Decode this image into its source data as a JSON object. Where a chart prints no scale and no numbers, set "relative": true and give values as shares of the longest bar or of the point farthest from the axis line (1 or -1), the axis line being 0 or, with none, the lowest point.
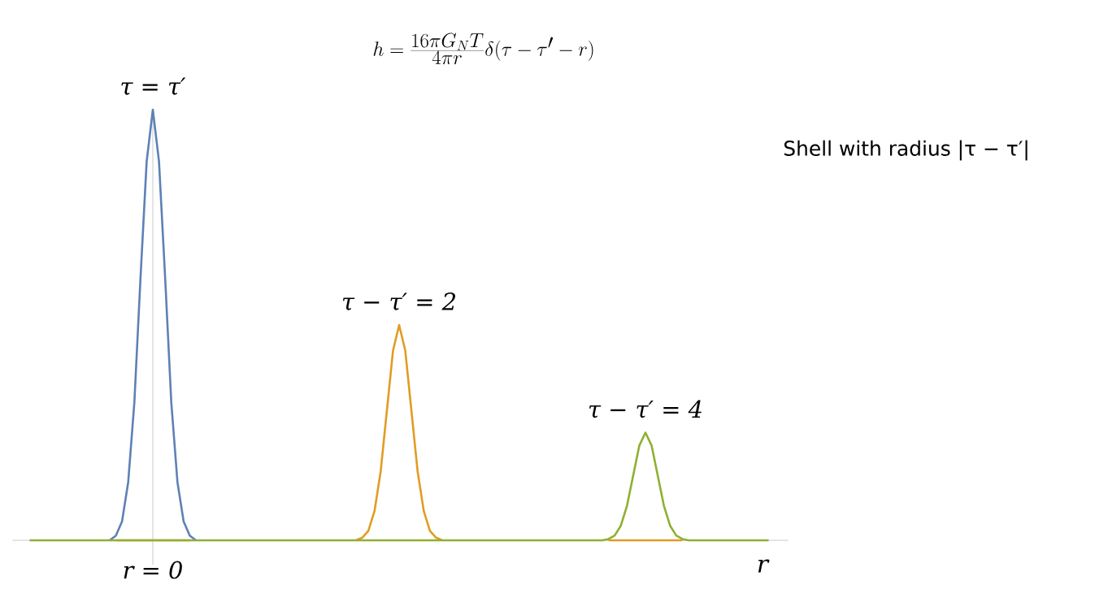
{
  "chart_data": {
    "type": "line",
    "relative": true,
    "title": "h = \\frac{16\\pi G_N T}{4\\pi r}\\delta(\\tau - \\tau' - r)",
    "subtitle": "Shell with radius |τ − τ′|",
    "xlabel": "r",
    "marker": "none",
    "line_style": "solid",
    "annotations": [
      "τ = τ′",
      "τ − τ′ = 2",
      "τ − τ′ = 4",
      "r = 0"
    ],
    "categories": [
      null,
      null,
      null,
      null,
      null,
      null,
      null,
      null,
      null,
      null,
      null,
      null,
      null,
      null,
      null,
      null,
      null,
      null,
      null,
      null,
      null,
      null,
      null,
      null,
      null,
      null,
      null,
      null,
      null,
      null,
      null,
      null,
      null,
      null,
      null,
      null,
      null,
      null,
      null,
      null,
      null,
      null,
      null,
      null,
      null,
      null,
      null,
      null,
      null,
      null,
      null,
      null,
      null,
      null,
      null,
      null,
      null,
      null,
      null,
      null,
      null,
      null,
      null,
      null,
      null,
      null,
      null,
      null,
      null,
      null,
      null,
      null,
      null,
      null,
      null,
      null,
      null,
      null,
      null,
      null,
      null,
      null,
      null,
      null,
      null,
      null,
      null,
      null,
      null,
      null,
      null,
      null,
      null,
      null,
      null,
      null,
      null,
      null,
      null,
      null,
      null,
      null,
      null,
      null,
      null,
      null,
      null,
      null,
      null,
      null,
      null,
      null,
      null,
      null,
      null,
      null,
      null,
      null,
      null,
      null,
      null
    ],
    "series": [
      {
        "color": "#5e81b5",
        "values": [
          null,
          null,
          null,
          null,
          null,
          null,
          null,
          null,
          null,
          null,
          null,
          null,
          null,
          0,
          0.011,
          0.044,
          0.135,
          0.32,
          0.61,
          0.88,
          1,
          0.88,
          0.61,
          0.32,
          0.135,
          0.044,
          0.011,
          0,
          null,
          null,
          null,
          null,
          null,
          null,
          null,
          null,
          null,
          null,
          null,
          null,
          null,
          null,
          null,
          null,
          null,
          null,
          null,
          null,
          null,
          null,
          null,
          null,
          null,
          null,
          null,
          null,
          null,
          null,
          null,
          null,
          null,
          null,
          null,
          null,
          null,
          null,
          null,
          null,
          null,
          null,
          null,
          null,
          null,
          null,
          null,
          null,
          null,
          null,
          null,
          null,
          null,
          null,
          null,
          null,
          null,
          null,
          null,
          null,
          null,
          null,
          null,
          null,
          null,
          null,
          null,
          null,
          null,
          null,
          null,
          null,
          null,
          null,
          null,
          null,
          null,
          null,
          null,
          null,
          null,
          null,
          null,
          null,
          null,
          null,
          null,
          null,
          null,
          null,
          null,
          null,
          null
        ]
      },
      {
        "color": "#e19c24",
        "values": [
          null,
          null,
          null,
          null,
          null,
          null,
          null,
          null,
          null,
          null,
          null,
          null,
          null,
          null,
          0,
          0,
          0,
          0,
          0,
          0,
          0,
          0,
          0,
          0,
          0,
          0,
          0,
          null,
          null,
          null,
          null,
          null,
          null,
          null,
          null,
          null,
          null,
          null,
          null,
          null,
          null,
          null,
          null,
          null,
          null,
          null,
          null,
          null,
          null,
          null,
          null,
          null,
          null,
          0,
          0.006,
          0.022,
          0.068,
          0.16,
          0.3,
          0.44,
          0.5,
          0.44,
          0.3,
          0.16,
          0.068,
          0.022,
          0.006,
          0,
          null,
          null,
          null,
          null,
          null,
          null,
          null,
          null,
          null,
          null,
          null,
          null,
          null,
          null,
          null,
          null,
          null,
          null,
          null,
          null,
          null,
          null,
          null,
          null,
          null,
          null,
          0,
          0,
          0,
          0,
          0,
          0,
          0,
          0,
          0,
          0,
          0,
          0,
          0,
          null,
          null,
          null,
          null,
          null,
          null,
          null,
          null,
          null,
          null,
          null,
          null,
          null,
          null
        ]
      },
      {
        "color": "#8fb032",
        "values": [
          0,
          0,
          0,
          0,
          0,
          0,
          0,
          0,
          0,
          0,
          0,
          0,
          0,
          0,
          0,
          0,
          0,
          0,
          0,
          0,
          0,
          0,
          0,
          0,
          0,
          0,
          0,
          0,
          0,
          0,
          0,
          0,
          0,
          0,
          0,
          0,
          0,
          0,
          0,
          0,
          0,
          0,
          0,
          0,
          0,
          0,
          0,
          0,
          0,
          0,
          0,
          0,
          0,
          0,
          0,
          0,
          0,
          0,
          0,
          0,
          0,
          0,
          0,
          0,
          0,
          0,
          0,
          0,
          0,
          0,
          0,
          0,
          0,
          0,
          0,
          0,
          0,
          0,
          0,
          0,
          0,
          0,
          0,
          0,
          0,
          0,
          0,
          0,
          0,
          0,
          0,
          0,
          0,
          0,
          0.003,
          0.011,
          0.034,
          0.08,
          0.15,
          0.22,
          0.25,
          0.22,
          0.15,
          0.08,
          0.034,
          0.011,
          0.003,
          0,
          0,
          0,
          0,
          0,
          0,
          0,
          0,
          0,
          0,
          0,
          0,
          0,
          0
        ]
      }
    ]
  }
}
